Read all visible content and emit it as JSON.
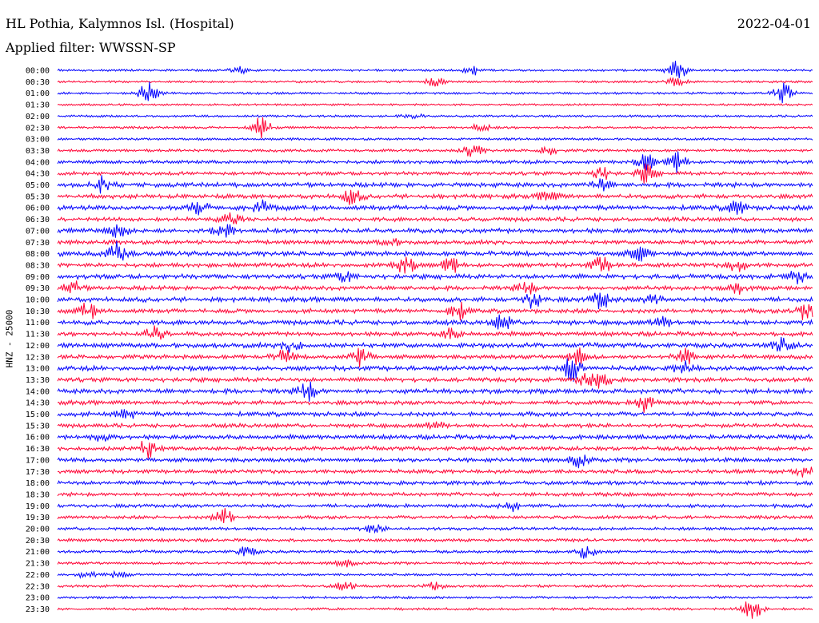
{
  "header": {
    "station": "HL Pothia, Kalymnos Isl. (Hospital)",
    "date": "2022-04-01",
    "filter": "Applied filter: WWSSN-SP"
  },
  "chart_data": {
    "type": "line",
    "title": "HL Pothia, Kalymnos Isl. (Hospital)",
    "subtitle": "Applied filter: WWSSN-SP",
    "ylabel": "HNZ - 25000",
    "xlabel": "",
    "grid": false,
    "trace_colors": [
      "#0000ff",
      "#ff0033"
    ],
    "rows": [
      {
        "label": "00:00",
        "level": 0.05,
        "events": [
          [
            0.24,
            0.25
          ],
          [
            0.55,
            0.35
          ],
          [
            0.82,
            0.8
          ]
        ]
      },
      {
        "label": "00:30",
        "level": 0.04,
        "events": [
          [
            0.5,
            0.35
          ],
          [
            0.82,
            0.3
          ]
        ]
      },
      {
        "label": "01:00",
        "level": 0.06,
        "events": [
          [
            0.12,
            0.85
          ],
          [
            0.96,
            0.85
          ]
        ]
      },
      {
        "label": "01:30",
        "level": 0.03,
        "events": []
      },
      {
        "label": "02:00",
        "level": 0.06,
        "events": [
          [
            0.47,
            0.2
          ]
        ]
      },
      {
        "label": "02:30",
        "level": 0.09,
        "events": [
          [
            0.27,
            0.8
          ],
          [
            0.56,
            0.3
          ]
        ]
      },
      {
        "label": "03:00",
        "level": 0.08,
        "events": []
      },
      {
        "label": "03:30",
        "level": 0.15,
        "events": [
          [
            0.55,
            0.55
          ],
          [
            0.65,
            0.3
          ]
        ]
      },
      {
        "label": "04:00",
        "level": 0.28,
        "events": [
          [
            0.78,
            0.6
          ],
          [
            0.82,
            0.8
          ]
        ]
      },
      {
        "label": "04:30",
        "level": 0.3,
        "events": [
          [
            0.72,
            0.5
          ],
          [
            0.78,
            0.7
          ]
        ]
      },
      {
        "label": "05:00",
        "level": 0.45,
        "events": [
          [
            0.06,
            0.6
          ],
          [
            0.72,
            0.4
          ]
        ]
      },
      {
        "label": "05:30",
        "level": 0.42,
        "events": [
          [
            0.39,
            0.6
          ],
          [
            0.65,
            0.4
          ]
        ]
      },
      {
        "label": "06:00",
        "level": 0.5,
        "events": [
          [
            0.19,
            0.75
          ],
          [
            0.27,
            0.5
          ],
          [
            0.9,
            0.6
          ]
        ]
      },
      {
        "label": "06:30",
        "level": 0.4,
        "events": [
          [
            0.23,
            0.4
          ]
        ]
      },
      {
        "label": "07:00",
        "level": 0.48,
        "events": [
          [
            0.08,
            0.6
          ],
          [
            0.22,
            0.7
          ]
        ]
      },
      {
        "label": "07:30",
        "level": 0.38,
        "events": [
          [
            0.44,
            0.3
          ]
        ]
      },
      {
        "label": "08:00",
        "level": 0.5,
        "events": [
          [
            0.08,
            0.85
          ],
          [
            0.77,
            0.55
          ]
        ]
      },
      {
        "label": "08:30",
        "level": 0.42,
        "events": [
          [
            0.46,
            0.7
          ],
          [
            0.52,
            0.65
          ],
          [
            0.72,
            0.6
          ],
          [
            0.9,
            0.5
          ]
        ]
      },
      {
        "label": "09:00",
        "level": 0.48,
        "events": [
          [
            0.38,
            0.4
          ],
          [
            0.98,
            0.5
          ]
        ]
      },
      {
        "label": "09:30",
        "level": 0.4,
        "events": [
          [
            0.02,
            0.5
          ],
          [
            0.62,
            0.5
          ],
          [
            0.9,
            0.4
          ]
        ]
      },
      {
        "label": "10:00",
        "level": 0.48,
        "events": [
          [
            0.63,
            0.6
          ],
          [
            0.72,
            0.7
          ],
          [
            0.79,
            0.4
          ]
        ]
      },
      {
        "label": "10:30",
        "level": 0.42,
        "events": [
          [
            0.04,
            0.6
          ],
          [
            0.53,
            0.65
          ],
          [
            0.99,
            0.7
          ]
        ]
      },
      {
        "label": "11:00",
        "level": 0.5,
        "events": [
          [
            0.59,
            0.55
          ],
          [
            0.8,
            0.4
          ]
        ]
      },
      {
        "label": "11:30",
        "level": 0.42,
        "events": [
          [
            0.13,
            0.6
          ],
          [
            0.52,
            0.4
          ]
        ]
      },
      {
        "label": "12:00",
        "level": 0.48,
        "events": [
          [
            0.31,
            0.5
          ],
          [
            0.96,
            0.6
          ]
        ]
      },
      {
        "label": "12:30",
        "level": 0.42,
        "events": [
          [
            0.3,
            0.55
          ],
          [
            0.4,
            0.7
          ],
          [
            0.69,
            0.7
          ],
          [
            0.83,
            0.6
          ]
        ]
      },
      {
        "label": "13:00",
        "level": 0.48,
        "events": [
          [
            0.68,
            1.0
          ],
          [
            0.83,
            0.5
          ]
        ]
      },
      {
        "label": "13:30",
        "level": 0.42,
        "events": [
          [
            0.7,
            0.5
          ],
          [
            0.72,
            0.6
          ]
        ]
      },
      {
        "label": "14:00",
        "level": 0.48,
        "events": [
          [
            0.33,
            0.75
          ]
        ]
      },
      {
        "label": "14:30",
        "level": 0.4,
        "events": [
          [
            0.78,
            0.7
          ]
        ]
      },
      {
        "label": "15:00",
        "level": 0.44,
        "events": [
          [
            0.09,
            0.4
          ]
        ]
      },
      {
        "label": "15:30",
        "level": 0.38,
        "events": [
          [
            0.5,
            0.3
          ]
        ]
      },
      {
        "label": "16:00",
        "level": 0.44,
        "events": [
          [
            0.06,
            0.4
          ]
        ]
      },
      {
        "label": "16:30",
        "level": 0.38,
        "events": [
          [
            0.12,
            0.75
          ]
        ]
      },
      {
        "label": "17:00",
        "level": 0.4,
        "events": [
          [
            0.69,
            0.5
          ]
        ]
      },
      {
        "label": "17:30",
        "level": 0.36,
        "events": [
          [
            0.99,
            0.4
          ]
        ]
      },
      {
        "label": "18:00",
        "level": 0.36,
        "events": []
      },
      {
        "label": "18:30",
        "level": 0.3,
        "events": []
      },
      {
        "label": "19:00",
        "level": 0.28,
        "events": [
          [
            0.6,
            0.4
          ]
        ]
      },
      {
        "label": "19:30",
        "level": 0.26,
        "events": [
          [
            0.22,
            0.75
          ]
        ]
      },
      {
        "label": "20:00",
        "level": 0.22,
        "events": [
          [
            0.42,
            0.3
          ]
        ]
      },
      {
        "label": "20:30",
        "level": 0.2,
        "events": []
      },
      {
        "label": "21:00",
        "level": 0.16,
        "events": [
          [
            0.25,
            0.4
          ],
          [
            0.7,
            0.55
          ]
        ]
      },
      {
        "label": "21:30",
        "level": 0.14,
        "events": [
          [
            0.38,
            0.3
          ]
        ]
      },
      {
        "label": "22:00",
        "level": 0.08,
        "events": [
          [
            0.04,
            0.3
          ],
          [
            0.08,
            0.3
          ]
        ]
      },
      {
        "label": "22:30",
        "level": 0.12,
        "events": [
          [
            0.38,
            0.4
          ],
          [
            0.5,
            0.3
          ]
        ]
      },
      {
        "label": "23:00",
        "level": 0.08,
        "events": []
      },
      {
        "label": "23:30",
        "level": 0.1,
        "events": [
          [
            0.92,
            1.0
          ]
        ]
      }
    ]
  }
}
